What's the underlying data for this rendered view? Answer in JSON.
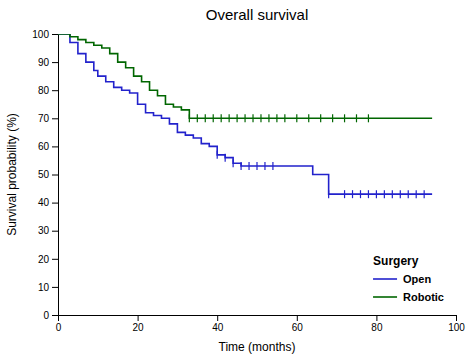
{
  "chart_data": {
    "type": "step",
    "title": "Overall survival",
    "xlabel": "Time (months)",
    "ylabel": "Survival probability (%)",
    "xlim": [
      0,
      100
    ],
    "ylim": [
      0,
      100
    ],
    "xticks": [
      0,
      20,
      40,
      60,
      80,
      100
    ],
    "yticks": [
      0,
      10,
      20,
      30,
      40,
      50,
      60,
      70,
      80,
      90,
      100
    ],
    "grid": false,
    "legend": "lower right",
    "legend_title": "Surgery",
    "series": [
      {
        "name": "Open",
        "color": "#2222cc",
        "x": [
          0,
          3,
          5,
          7,
          9,
          10,
          12,
          14,
          16,
          18,
          20,
          22,
          24,
          26,
          28,
          30,
          32,
          34,
          36,
          38,
          40,
          42,
          44,
          46,
          48,
          50,
          52,
          54,
          56,
          58,
          60,
          62,
          64,
          66,
          68,
          70,
          72,
          74,
          76,
          78,
          80,
          82,
          84,
          86,
          88,
          90,
          92,
          94
        ],
        "values": [
          100,
          97,
          93,
          90,
          87,
          85,
          83,
          81,
          80,
          79,
          75,
          72,
          71,
          70,
          68,
          65,
          64,
          63,
          61,
          60,
          57,
          56,
          54,
          53,
          53,
          53,
          53,
          53,
          53,
          53,
          53,
          53,
          50,
          50,
          43,
          43,
          43,
          43,
          43,
          43,
          43,
          43,
          43,
          43,
          43,
          43,
          43,
          43
        ],
        "censors_x": [
          40,
          42,
          44,
          46,
          48,
          50,
          52,
          54,
          68,
          72,
          74,
          76,
          78,
          80,
          82,
          84,
          86,
          88,
          90,
          92
        ],
        "censors_y": [
          57,
          56,
          54,
          53,
          53,
          53,
          53,
          53,
          43,
          43,
          43,
          43,
          43,
          43,
          43,
          43,
          43,
          43,
          43,
          43
        ]
      },
      {
        "name": "Robotic",
        "color": "#006600",
        "x": [
          0,
          3,
          5,
          7,
          9,
          11,
          13,
          15,
          17,
          19,
          21,
          23,
          25,
          27,
          29,
          31,
          33,
          35,
          37,
          39,
          94
        ],
        "values": [
          100,
          99,
          98,
          97,
          96,
          95,
          93,
          90,
          88,
          85,
          83,
          80,
          78,
          75,
          74,
          73,
          70,
          70,
          70,
          70,
          70
        ],
        "censors_x": [
          33,
          35,
          37,
          39,
          41,
          43,
          45,
          47,
          49,
          51,
          53,
          55,
          57,
          60,
          63,
          66,
          69,
          72,
          75,
          78
        ],
        "censors_y": [
          70,
          70,
          70,
          70,
          70,
          70,
          70,
          70,
          70,
          70,
          70,
          70,
          70,
          70,
          70,
          70,
          70,
          70,
          70,
          70
        ]
      }
    ]
  }
}
